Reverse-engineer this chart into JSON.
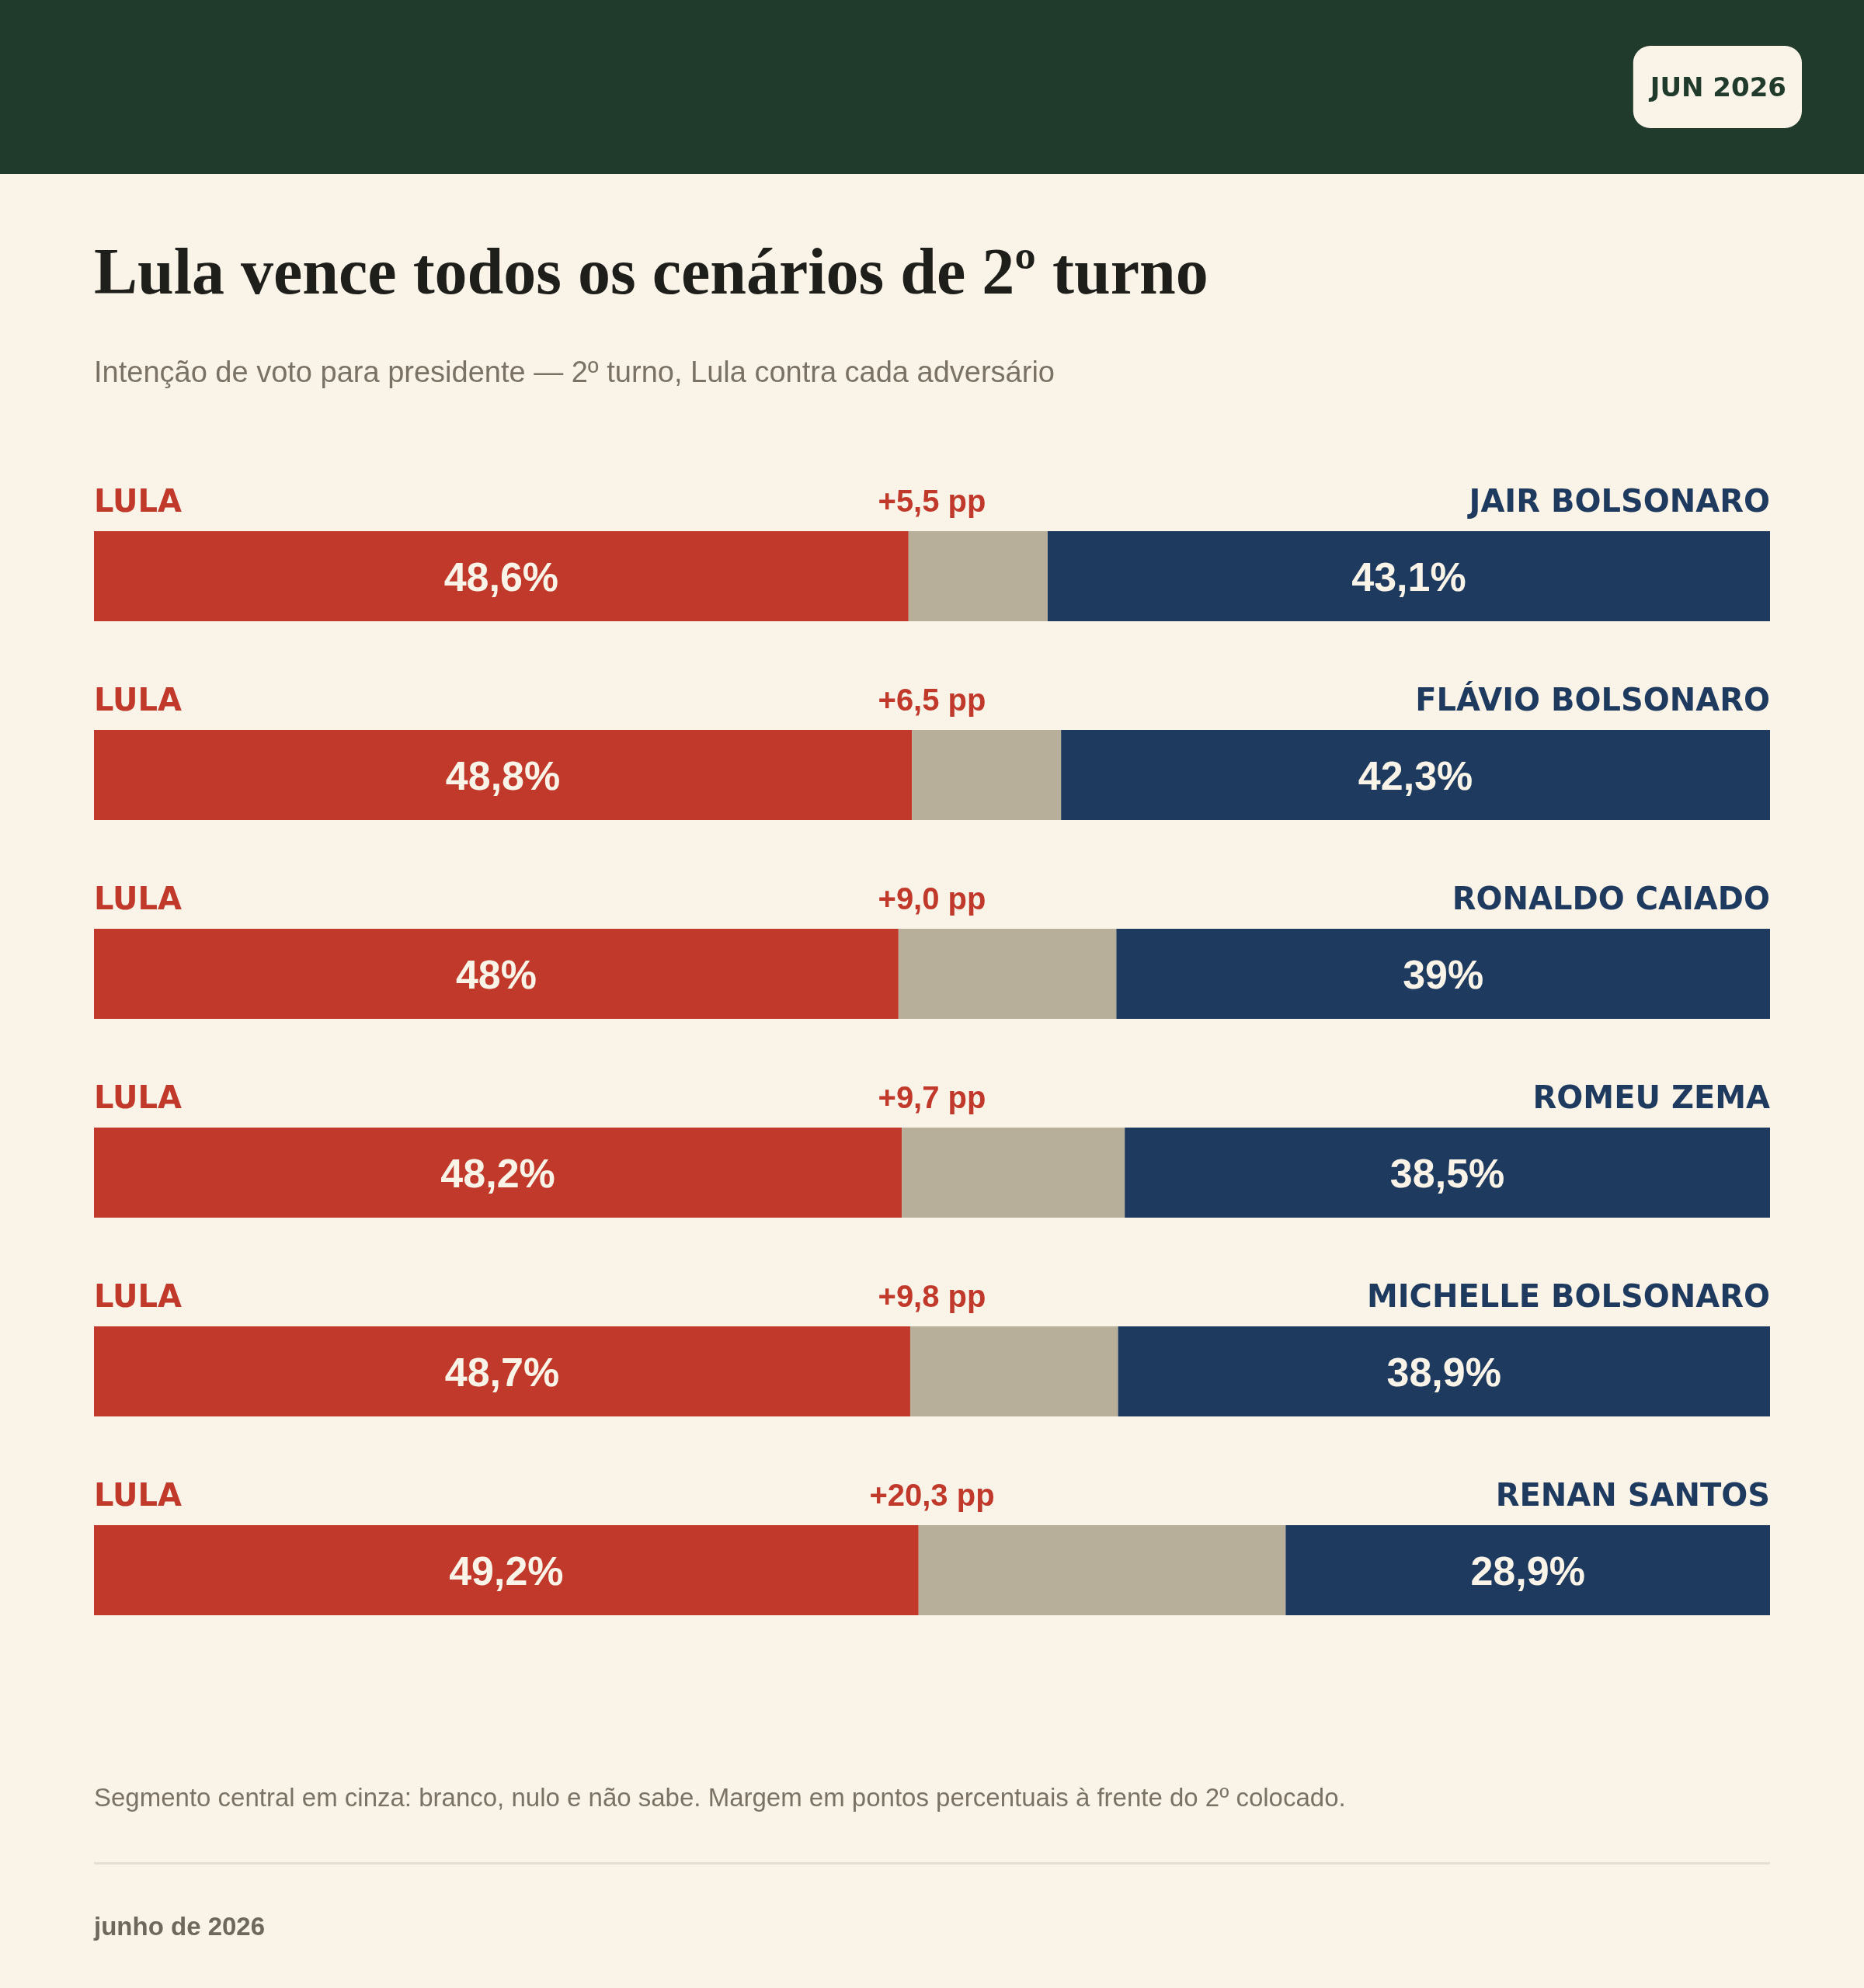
{
  "chart_data": {
    "type": "bar",
    "orientation": "horizontal",
    "stacked": true,
    "title": "Lula vence todos os cenários de 2º turno",
    "subtitle": "Intenção de voto para presidente — 2º turno, Lula contra cada adversário",
    "categories": [
      "JAIR BOLSONARO",
      "FLÁVIO BOLSONARO",
      "RONALDO CAIADO",
      "ROMEU ZEMA",
      "MICHELLE BOLSONARO",
      "RENAN SANTOS"
    ],
    "xlim": [
      0,
      100
    ],
    "series": [
      {
        "name": "LULA",
        "color": "#c0392b",
        "values": [
          48.6,
          48.8,
          48,
          48.2,
          48.7,
          49.2
        ],
        "value_labels": [
          "48,6%",
          "48,8%",
          "48%",
          "48,2%",
          "48,7%",
          "49,2%"
        ]
      },
      {
        "color": "#b8af9b",
        "values": [
          8.3,
          8.9,
          13,
          13.3,
          12.4,
          21.9
        ]
      },
      {
        "color": "#1f3a5f",
        "values": [
          43.1,
          42.3,
          39,
          38.5,
          38.9,
          28.9
        ],
        "value_labels": [
          "43,1%",
          "42,3%",
          "39%",
          "38,5%",
          "38,9%",
          "28,9%"
        ]
      }
    ],
    "annotations": [
      "JUN 2026",
      "+5,5 pp",
      "+6,5 pp",
      "+9,0 pp",
      "+9,7 pp",
      "+9,8 pp",
      "+20,3 pp",
      "Segmento central em cinza: branco, nulo e não sabe. Margem em pontos percentuais à frente do 2º colocado.",
      "junho de 2026"
    ]
  }
}
